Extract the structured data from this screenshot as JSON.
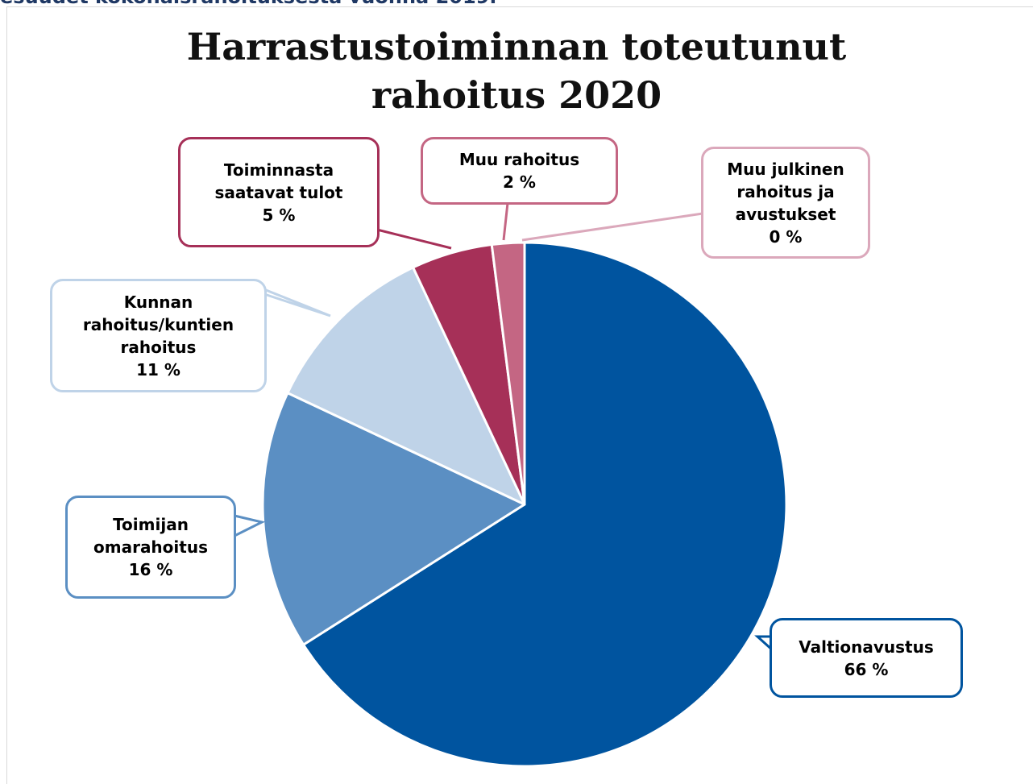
{
  "caption": "esuudet kokonaisrahoituksesta vuonna 2019.",
  "chart_data": {
    "type": "pie",
    "title": "Harrastustoiminnan toteutunut rahoitus 2020",
    "categories": [
      "Valtionavustus",
      "Toimijan omarahoitus",
      "Kunnan rahoitus/kuntien rahoitus",
      "Toiminnasta saatavat tulot",
      "Muu rahoitus",
      "Muu julkinen rahoitus ja avustukset"
    ],
    "values": [
      66,
      16,
      11,
      5,
      2,
      0
    ],
    "value_labels": [
      "66 %",
      "16 %",
      "11 %",
      "5 %",
      "2 %",
      "0 %"
    ],
    "colors": [
      "#00549f",
      "#5b8fc3",
      "#bfd3e8",
      "#a63058",
      "#c46683",
      "#dba8bb"
    ]
  }
}
